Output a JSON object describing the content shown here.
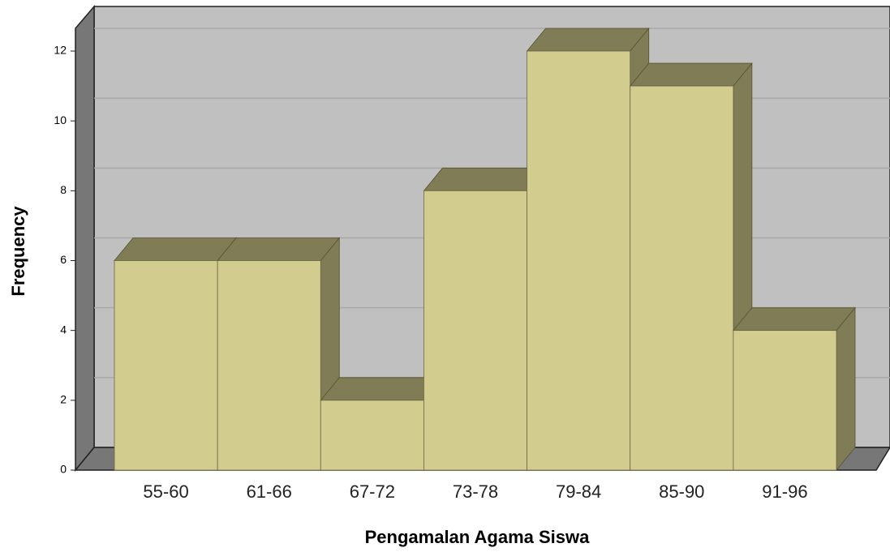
{
  "chart_data": {
    "type": "bar",
    "x_label": "Pengamalan Agama Siswa",
    "y_label": "Frequency",
    "categories": [
      "55-60",
      "61-66",
      "67-72",
      "73-78",
      "79-84",
      "85-90",
      "91-96"
    ],
    "values": [
      6,
      6,
      2,
      8,
      12,
      11,
      4
    ],
    "color": "#d3cc8f",
    "ylim": [
      0,
      12
    ],
    "yticks": [
      0,
      2,
      4,
      6,
      8,
      10,
      12
    ],
    "grid": true
  }
}
